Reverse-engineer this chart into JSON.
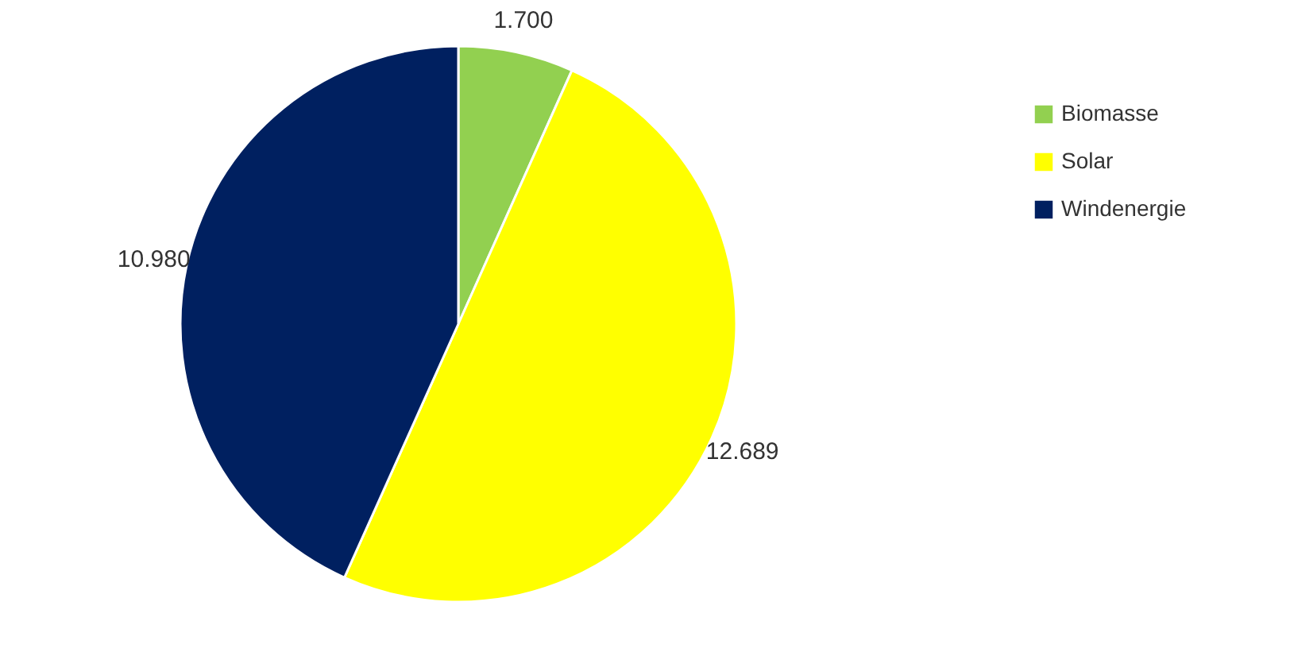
{
  "chart_data": {
    "type": "pie",
    "categories": [
      "Biomasse",
      "Solar",
      "Windenergie"
    ],
    "values": [
      1700,
      12689,
      10980
    ],
    "colors": [
      "#92d050",
      "#ffff00",
      "#002060"
    ],
    "value_labels": [
      "1.700",
      "12.689",
      "10.980"
    ],
    "legend": "right"
  }
}
